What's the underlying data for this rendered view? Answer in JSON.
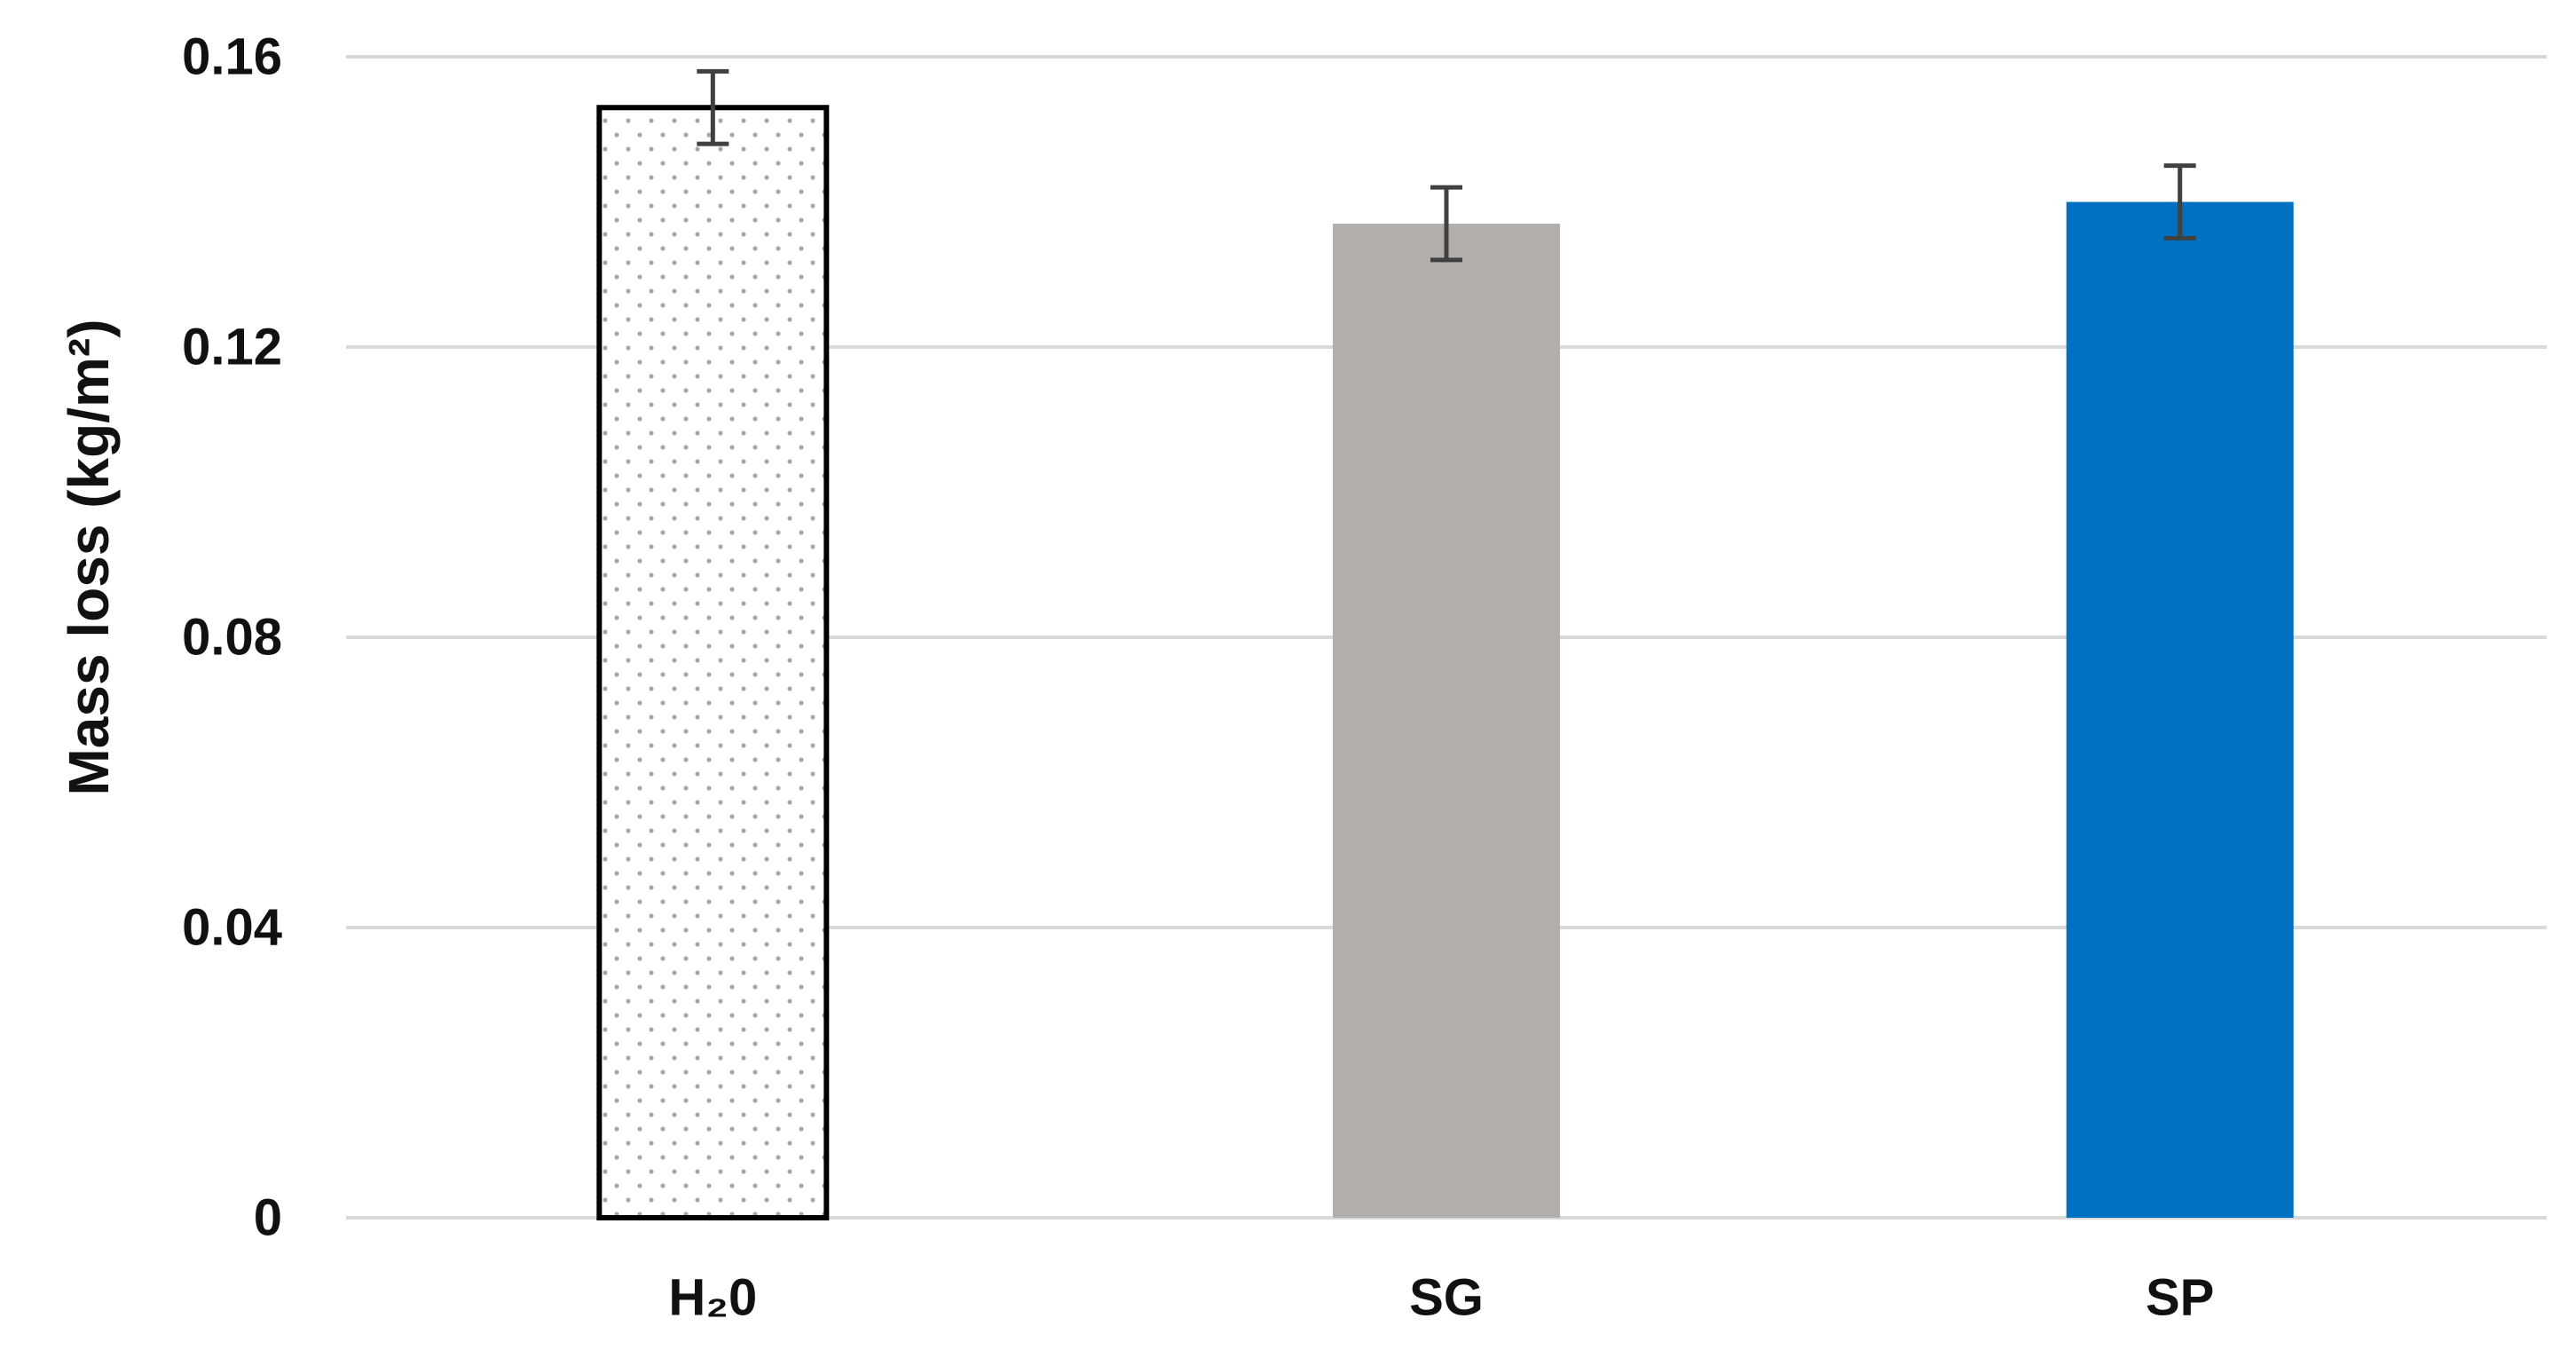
{
  "chart_data": {
    "type": "bar",
    "title": "",
    "xlabel": "",
    "ylabel": "Mass loss (kg/m²)",
    "ylim": [
      0,
      0.16
    ],
    "yticks": [
      0,
      0.04,
      0.08,
      0.12,
      0.16
    ],
    "ytick_labels": [
      "0",
      "0.04",
      "0.08",
      "0.12",
      "0.16"
    ],
    "grid": true,
    "legend": "none",
    "categories": [
      "H₂0",
      "SG",
      "SP"
    ],
    "values": [
      0.153,
      0.137,
      0.14
    ],
    "error": [
      0.005,
      0.005,
      0.005
    ],
    "bar_styles": [
      {
        "fill": "#ffffff",
        "stroke": "#000000",
        "pattern": "dots",
        "pattern_color": "#a8a8a8"
      },
      {
        "fill": "#b1aeab",
        "stroke": "none",
        "pattern": "none"
      },
      {
        "fill": "#0070c0",
        "stroke": "none",
        "pattern": "none"
      }
    ],
    "colors": {
      "grid": "#d9d9d9",
      "error_bar": "#404040",
      "text": "#111111"
    }
  }
}
